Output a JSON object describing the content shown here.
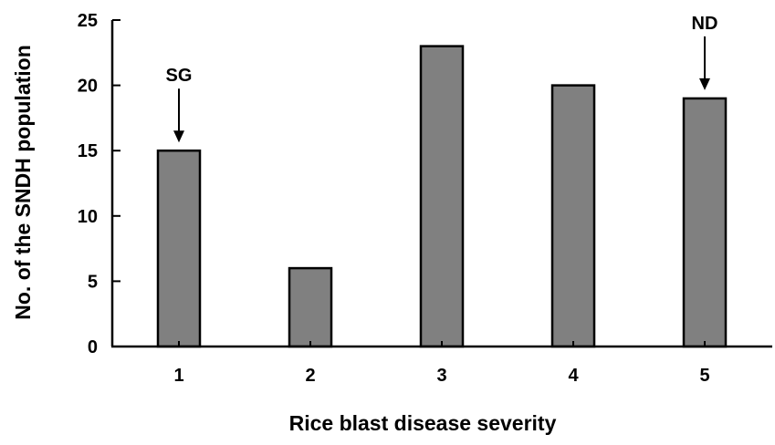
{
  "chart_data": {
    "type": "bar",
    "title": "",
    "xlabel": "Rice blast disease severity",
    "ylabel": "No. of the SNDH population",
    "categories": [
      "1",
      "2",
      "3",
      "4",
      "5"
    ],
    "values": [
      15,
      6,
      23,
      20,
      19
    ],
    "ylim": [
      0,
      25
    ],
    "yticks": [
      "0",
      "5",
      "10",
      "15",
      "20",
      "25"
    ],
    "ytick_values": [
      0,
      5,
      10,
      15,
      20,
      25
    ],
    "grid": false,
    "bar_color": "#808080",
    "annotations": [
      {
        "text": "SG",
        "category": "1"
      },
      {
        "text": "ND",
        "category": "5"
      }
    ]
  }
}
